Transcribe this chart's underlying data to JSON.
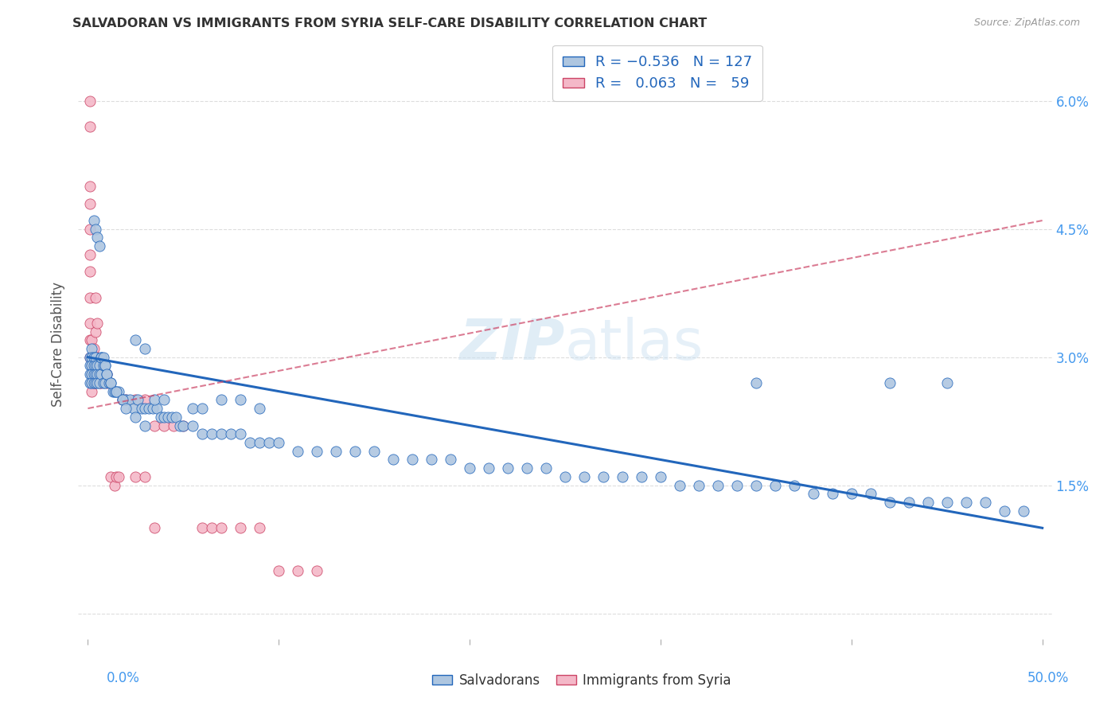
{
  "title": "SALVADORAN VS IMMIGRANTS FROM SYRIA SELF-CARE DISABILITY CORRELATION CHART",
  "source": "Source: ZipAtlas.com",
  "ylabel": "Self-Care Disability",
  "y_ticks": [
    0.0,
    0.015,
    0.03,
    0.045,
    0.06
  ],
  "y_tick_labels": [
    "",
    "1.5%",
    "3.0%",
    "4.5%",
    "6.0%"
  ],
  "blue_color": "#aec6e0",
  "pink_color": "#f4b8c8",
  "blue_line_color": "#2266bb",
  "pink_line_color": "#cc4466",
  "watermark_zip": "ZIP",
  "watermark_atlas": "atlas",
  "background_color": "#ffffff",
  "blue_scatter_x": [
    0.001,
    0.001,
    0.001,
    0.001,
    0.002,
    0.002,
    0.002,
    0.002,
    0.002,
    0.003,
    0.003,
    0.003,
    0.003,
    0.004,
    0.004,
    0.004,
    0.004,
    0.005,
    0.005,
    0.005,
    0.006,
    0.006,
    0.006,
    0.007,
    0.007,
    0.008,
    0.008,
    0.009,
    0.009,
    0.01,
    0.011,
    0.012,
    0.013,
    0.014,
    0.015,
    0.016,
    0.018,
    0.02,
    0.022,
    0.024,
    0.026,
    0.028,
    0.03,
    0.032,
    0.034,
    0.036,
    0.038,
    0.04,
    0.042,
    0.044,
    0.046,
    0.048,
    0.05,
    0.055,
    0.06,
    0.065,
    0.07,
    0.075,
    0.08,
    0.085,
    0.09,
    0.095,
    0.1,
    0.11,
    0.12,
    0.13,
    0.14,
    0.15,
    0.16,
    0.17,
    0.18,
    0.19,
    0.2,
    0.21,
    0.22,
    0.23,
    0.24,
    0.25,
    0.26,
    0.27,
    0.28,
    0.29,
    0.3,
    0.31,
    0.32,
    0.33,
    0.34,
    0.35,
    0.36,
    0.37,
    0.38,
    0.39,
    0.4,
    0.41,
    0.42,
    0.43,
    0.44,
    0.45,
    0.46,
    0.47,
    0.48,
    0.49,
    0.003,
    0.004,
    0.005,
    0.006,
    0.007,
    0.008,
    0.009,
    0.01,
    0.012,
    0.015,
    0.018,
    0.02,
    0.025,
    0.03,
    0.025,
    0.03,
    0.035,
    0.04,
    0.055,
    0.06,
    0.07,
    0.08,
    0.09,
    0.35,
    0.42,
    0.45
  ],
  "blue_scatter_y": [
    0.03,
    0.029,
    0.028,
    0.027,
    0.031,
    0.03,
    0.029,
    0.028,
    0.027,
    0.03,
    0.029,
    0.028,
    0.027,
    0.03,
    0.029,
    0.028,
    0.027,
    0.029,
    0.028,
    0.027,
    0.029,
    0.028,
    0.027,
    0.03,
    0.028,
    0.029,
    0.027,
    0.029,
    0.027,
    0.028,
    0.027,
    0.027,
    0.026,
    0.026,
    0.026,
    0.026,
    0.025,
    0.025,
    0.025,
    0.024,
    0.025,
    0.024,
    0.024,
    0.024,
    0.024,
    0.024,
    0.023,
    0.023,
    0.023,
    0.023,
    0.023,
    0.022,
    0.022,
    0.022,
    0.021,
    0.021,
    0.021,
    0.021,
    0.021,
    0.02,
    0.02,
    0.02,
    0.02,
    0.019,
    0.019,
    0.019,
    0.019,
    0.019,
    0.018,
    0.018,
    0.018,
    0.018,
    0.017,
    0.017,
    0.017,
    0.017,
    0.017,
    0.016,
    0.016,
    0.016,
    0.016,
    0.016,
    0.016,
    0.015,
    0.015,
    0.015,
    0.015,
    0.015,
    0.015,
    0.015,
    0.014,
    0.014,
    0.014,
    0.014,
    0.013,
    0.013,
    0.013,
    0.013,
    0.013,
    0.013,
    0.012,
    0.012,
    0.046,
    0.045,
    0.044,
    0.043,
    0.03,
    0.03,
    0.029,
    0.028,
    0.027,
    0.026,
    0.025,
    0.024,
    0.023,
    0.022,
    0.032,
    0.031,
    0.025,
    0.025,
    0.024,
    0.024,
    0.025,
    0.025,
    0.024,
    0.027,
    0.027,
    0.027
  ],
  "pink_scatter_x": [
    0.001,
    0.001,
    0.001,
    0.001,
    0.001,
    0.001,
    0.001,
    0.001,
    0.001,
    0.001,
    0.001,
    0.002,
    0.002,
    0.002,
    0.002,
    0.002,
    0.002,
    0.003,
    0.003,
    0.003,
    0.003,
    0.003,
    0.004,
    0.004,
    0.004,
    0.005,
    0.005,
    0.005,
    0.006,
    0.006,
    0.007,
    0.007,
    0.008,
    0.009,
    0.01,
    0.01,
    0.012,
    0.014,
    0.015,
    0.016,
    0.018,
    0.02,
    0.025,
    0.03,
    0.035,
    0.04,
    0.045,
    0.05,
    0.06,
    0.065,
    0.07,
    0.08,
    0.09,
    0.1,
    0.11,
    0.12,
    0.025,
    0.03,
    0.035
  ],
  "pink_scatter_y": [
    0.06,
    0.057,
    0.05,
    0.048,
    0.045,
    0.042,
    0.04,
    0.037,
    0.034,
    0.032,
    0.03,
    0.032,
    0.03,
    0.029,
    0.028,
    0.027,
    0.026,
    0.031,
    0.03,
    0.029,
    0.028,
    0.027,
    0.037,
    0.033,
    0.028,
    0.034,
    0.03,
    0.028,
    0.028,
    0.027,
    0.028,
    0.027,
    0.028,
    0.028,
    0.028,
    0.027,
    0.016,
    0.015,
    0.016,
    0.016,
    0.025,
    0.025,
    0.025,
    0.025,
    0.022,
    0.022,
    0.022,
    0.022,
    0.01,
    0.01,
    0.01,
    0.01,
    0.01,
    0.005,
    0.005,
    0.005,
    0.016,
    0.016,
    0.01
  ],
  "blue_trend_x": [
    0.0,
    0.5
  ],
  "blue_trend_y": [
    0.03,
    0.01
  ],
  "pink_trend_x": [
    0.0,
    0.5
  ],
  "pink_trend_y": [
    0.024,
    0.046
  ],
  "xlim": [
    -0.005,
    0.505
  ],
  "ylim": [
    -0.003,
    0.066
  ]
}
